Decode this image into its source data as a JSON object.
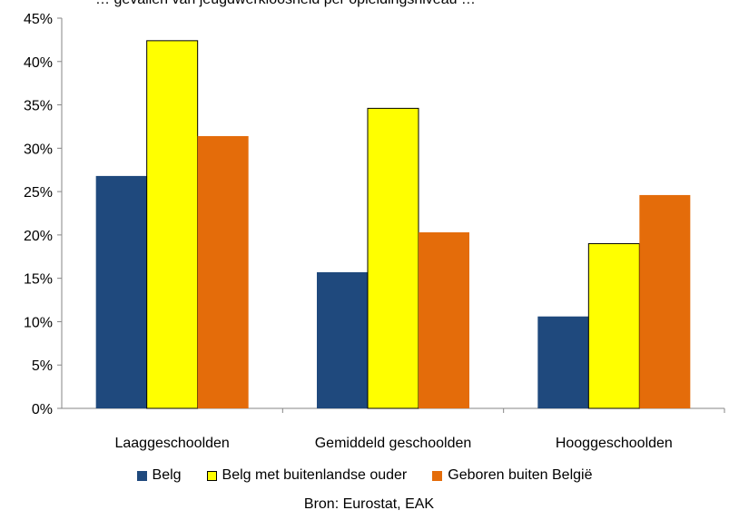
{
  "chart_data": {
    "type": "bar",
    "title": "… gevallen van jeugdwerkloosheid per opleidingsniveau …",
    "categories": [
      "Laaggeschoolden",
      "Gemiddeld geschoolden",
      "Hooggeschoolden"
    ],
    "series": [
      {
        "name": "Belg",
        "color": "#1F497D",
        "values": [
          26.8,
          15.7,
          10.6
        ]
      },
      {
        "name": "Belg met buitenlandse ouder",
        "color": "#FFFF00",
        "values": [
          42.4,
          34.6,
          19.0
        ]
      },
      {
        "name": "Geboren buiten België",
        "color": "#E46C0A",
        "values": [
          31.4,
          20.3,
          24.6
        ]
      }
    ],
    "ylim": [
      0,
      45
    ],
    "yticks": [
      "0%",
      "5%",
      "10%",
      "15%",
      "20%",
      "25%",
      "30%",
      "35%",
      "40%",
      "45%"
    ],
    "xlabel": "",
    "ylabel": "",
    "legend_position": "bottom",
    "grid": false,
    "source": "Bron: Eurostat, EAK"
  }
}
